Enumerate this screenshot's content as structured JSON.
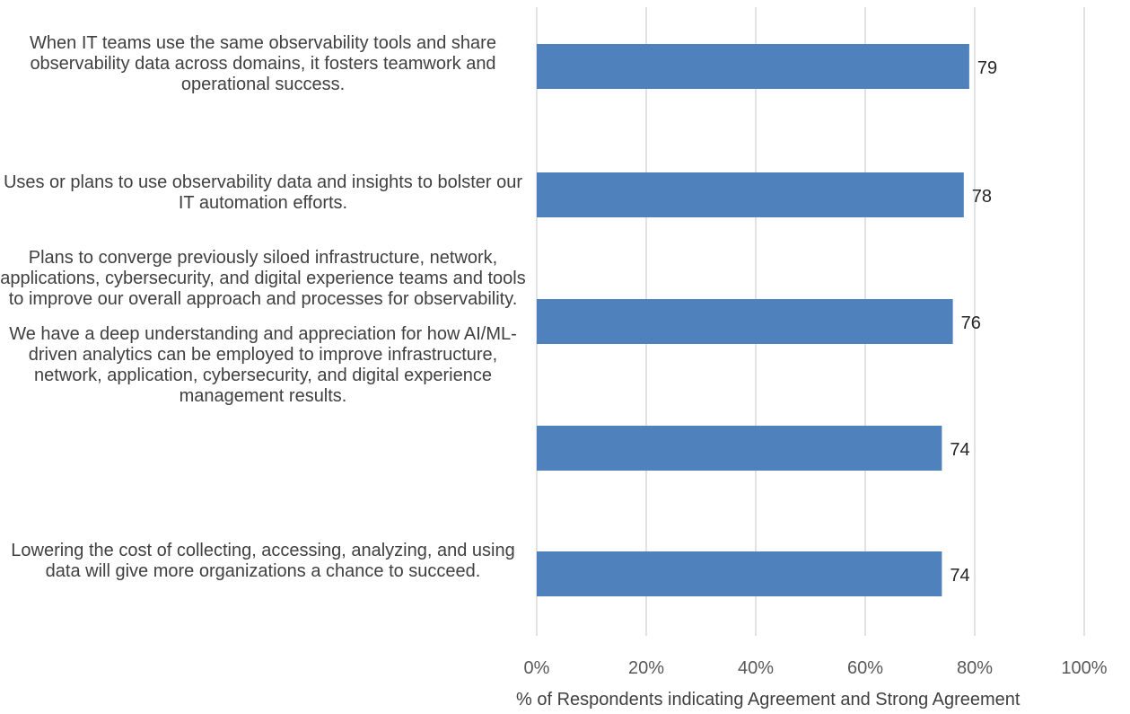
{
  "chart_data": {
    "type": "bar",
    "orientation": "horizontal",
    "categories": [
      "When IT teams use the same observability tools and share observability data across domains, it fosters teamwork and operational success.",
      "Uses or plans to use observability data and insights to bolster our IT automation efforts.",
      "Plans to converge previously siloed infrastructure, network, applications, cybersecurity, and digital experience teams and tools to improve our overall approach and processes for observability.",
      "We have a deep understanding and appreciation for how AI/ML-driven analytics can be employed to improve infrastructure, network, application, cybersecurity, and digital experience management results.",
      "Lowering the cost of collecting, accessing, analyzing, and using data will give more organizations a chance to succeed."
    ],
    "values": [
      79,
      78,
      76,
      74,
      74
    ],
    "data_labels": [
      "79",
      "78",
      "76",
      "74",
      "74"
    ],
    "xlim": [
      0,
      100
    ],
    "x_ticks": [
      "0%",
      "20%",
      "40%",
      "60%",
      "80%",
      "100%"
    ],
    "xlabel": "% of Respondents indicating Agreement and Strong Agreement",
    "ylabel": "",
    "title": "",
    "grid": "vertical",
    "bar_color": "#4F81BD",
    "grid_color": "#D9D9D9"
  }
}
